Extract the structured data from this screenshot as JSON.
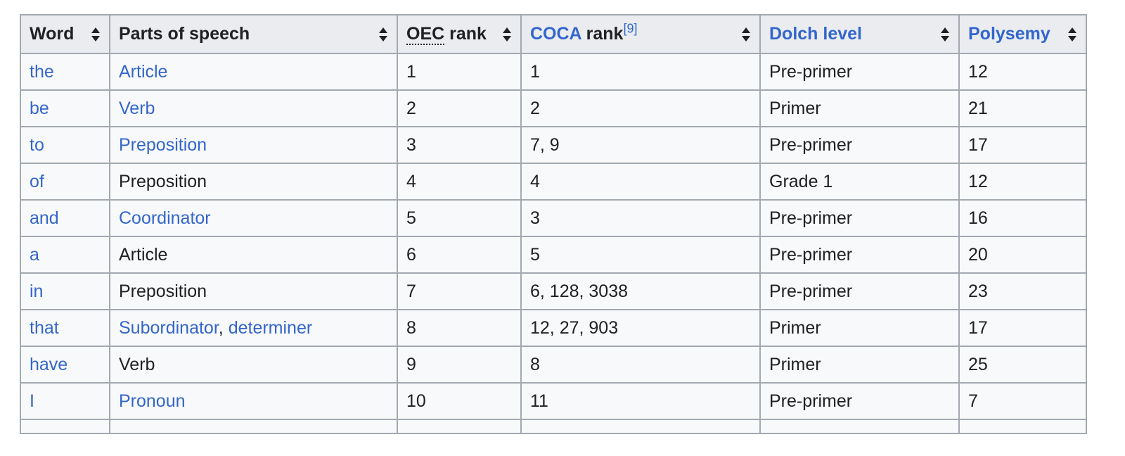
{
  "table": {
    "headers": {
      "word": "Word",
      "pos": "Parts of speech",
      "oec_abbr": "OEC",
      "oec_rest": " rank",
      "coca_link": "COCA",
      "coca_rest": " rank",
      "coca_ref": "[9]",
      "dolch": "Dolch level",
      "polysemy": "Polysemy"
    },
    "rows": [
      {
        "word": "the",
        "pos1": "Article",
        "pos_sep": "",
        "pos2": "",
        "oec": "1",
        "coca": "1",
        "dolch": "Pre-primer",
        "polysemy": "12"
      },
      {
        "word": "be",
        "pos1": "Verb",
        "pos_sep": "",
        "pos2": "",
        "oec": "2",
        "coca": "2",
        "dolch": "Primer",
        "polysemy": "21"
      },
      {
        "word": "to",
        "pos1": "Preposition",
        "pos_sep": "",
        "pos2": "",
        "oec": "3",
        "coca": "7, 9",
        "dolch": "Pre-primer",
        "polysemy": "17"
      },
      {
        "word": "of",
        "pos1": "Preposition",
        "pos_sep": "",
        "pos2": "",
        "oec": "4",
        "coca": "4",
        "dolch": "Grade 1",
        "polysemy": "12"
      },
      {
        "word": "and",
        "pos1": "Coordinator",
        "pos_sep": "",
        "pos2": "",
        "oec": "5",
        "coca": "3",
        "dolch": "Pre-primer",
        "polysemy": "16"
      },
      {
        "word": "a",
        "pos1": "Article",
        "pos_sep": "",
        "pos2": "",
        "oec": "6",
        "coca": "5",
        "dolch": "Pre-primer",
        "polysemy": "20"
      },
      {
        "word": "in",
        "pos1": "Preposition",
        "pos_sep": "",
        "pos2": "",
        "oec": "7",
        "coca": "6, 128, 3038",
        "dolch": "Pre-primer",
        "polysemy": "23"
      },
      {
        "word": "that",
        "pos1": "Subordinator",
        "pos_sep": ", ",
        "pos2": "determiner",
        "oec": "8",
        "coca": "12, 27, 903",
        "dolch": "Primer",
        "polysemy": "17"
      },
      {
        "word": "have",
        "pos1": "Verb",
        "pos_sep": "",
        "pos2": "",
        "oec": "9",
        "coca": "8",
        "dolch": "Primer",
        "polysemy": "25"
      },
      {
        "word": "I",
        "pos1": "Pronoun",
        "pos_sep": "",
        "pos2": "",
        "oec": "10",
        "coca": "11",
        "dolch": "Pre-primer",
        "polysemy": "7"
      },
      {
        "word": "",
        "pos1": "",
        "pos_sep": "",
        "pos2": "",
        "oec": "",
        "coca": "",
        "dolch": "",
        "polysemy": ""
      }
    ]
  },
  "colors": {
    "link": "#3366cc",
    "text": "#202122",
    "header_bg": "#eaecf0",
    "cell_bg": "#f8f9fa",
    "border": "#a2a9b1"
  },
  "icons": {
    "sort": "sort-updown-icon"
  }
}
